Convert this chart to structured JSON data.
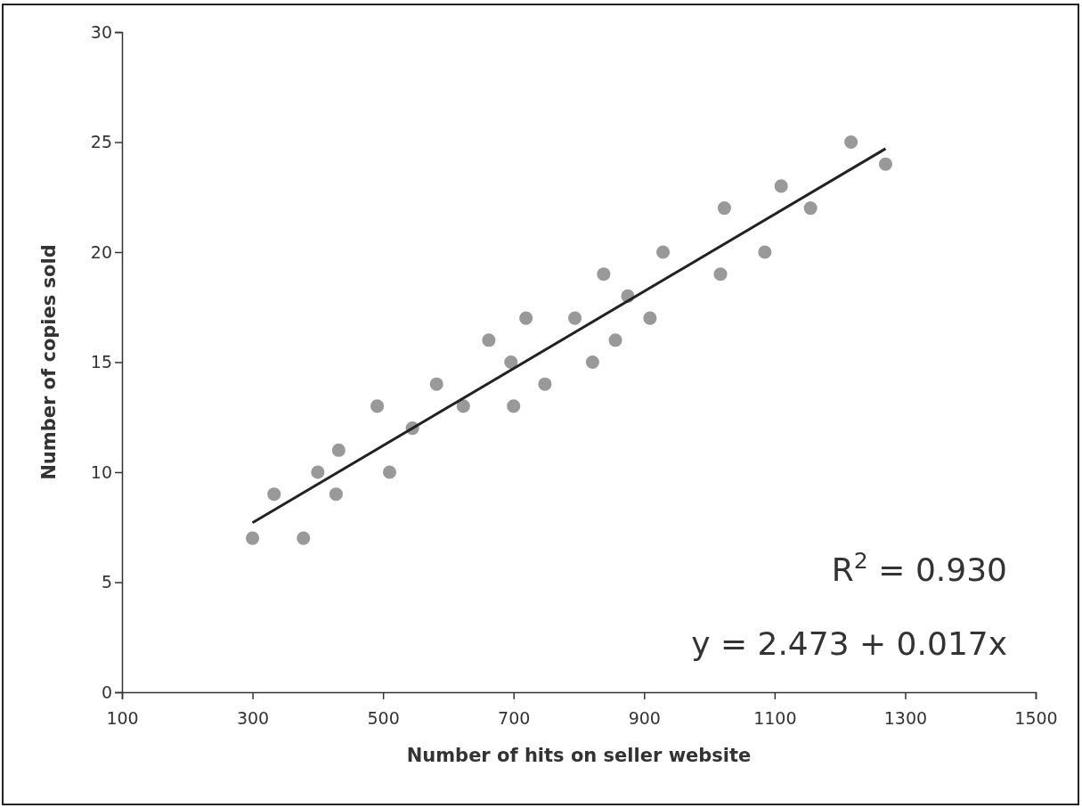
{
  "chart_data": {
    "type": "scatter",
    "xlabel": "Number of hits on seller website",
    "ylabel": "Number of copies sold",
    "xlim": [
      100,
      1500
    ],
    "xticks": [
      100,
      300,
      500,
      700,
      900,
      1100,
      1300,
      1500
    ],
    "ylim": [
      0,
      30
    ],
    "yticks": [
      0,
      5,
      10,
      15,
      20,
      25,
      30
    ],
    "grid": false,
    "marker": "circle",
    "series": [
      {
        "color": "#999999",
        "x": [
          300,
          333,
          378,
          400,
          428,
          432,
          491,
          510,
          545,
          582,
          623,
          662,
          696,
          700,
          719,
          748,
          794,
          821,
          838,
          856,
          875,
          909,
          929,
          1017,
          1023,
          1085,
          1110,
          1155,
          1217,
          1270
        ],
        "values": [
          7,
          9,
          7,
          10,
          9,
          11,
          13,
          10,
          12,
          14,
          13,
          16,
          15,
          13,
          17,
          14,
          17,
          15,
          19,
          16,
          18,
          17,
          20,
          19,
          22,
          20,
          23,
          22,
          25,
          24
        ]
      },
      {
        "type": "line",
        "color": "#222222",
        "line_style": "solid",
        "marker": "none",
        "x": [
          300,
          1270
        ],
        "values": [
          7.7,
          24.7
        ]
      }
    ],
    "annotations": [
      "R$^{2}$ = 0.930",
      "y = 2.473 + 0.017x"
    ]
  }
}
